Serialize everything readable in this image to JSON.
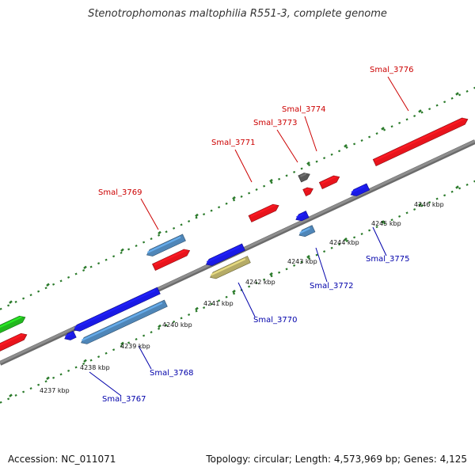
{
  "header": {
    "title": "Stenotrophomonas maltophilia R551-3, complete genome"
  },
  "footer": {
    "accession": "Accession: NC_011071",
    "summary": "Topology: circular; Length: 4,573,969 bp; Genes: 4,125"
  },
  "colors": {
    "forward_gene": "#e8141c",
    "reverse_gene": "#1a1ae6",
    "steel_gene": "#4f86b8",
    "olive_gene": "#b5ab66",
    "green_gene": "#22b81e",
    "gray_gene": "#5a5a5a",
    "forward_label": "#cc0000",
    "reverse_label": "#0000aa",
    "tick_color": "#2a7a2a",
    "backbone": "#8e8e8e"
  },
  "kbp_ticks": [
    {
      "label": "4237 kbp"
    },
    {
      "label": "4238 kbp"
    },
    {
      "label": "4239 kbp"
    },
    {
      "label": "4240 kbp"
    },
    {
      "label": "4241 kbp"
    },
    {
      "label": "4242 kbp"
    },
    {
      "label": "4243 kbp"
    },
    {
      "label": "4244 kbp"
    },
    {
      "label": "4245 kbp"
    },
    {
      "label": "4246 kbp"
    }
  ],
  "genes": [
    {
      "id": "Smal_3767",
      "strand": "reverse",
      "color": "steel"
    },
    {
      "id": "Smal_3768",
      "strand": "reverse",
      "color": "blue"
    },
    {
      "id": "Smal_3769",
      "strand": "forward",
      "color": "red"
    },
    {
      "id": "Smal_3770",
      "strand": "reverse",
      "color": "olive"
    },
    {
      "id": "Smal_3771",
      "strand": "forward",
      "color": "red"
    },
    {
      "id": "Smal_3772",
      "strand": "reverse",
      "color": "steel"
    },
    {
      "id": "Smal_3773",
      "strand": "forward",
      "color": "red"
    },
    {
      "id": "Smal_3774",
      "strand": "forward",
      "color": "gray"
    },
    {
      "id": "Smal_3775",
      "strand": "reverse",
      "color": "blue"
    },
    {
      "id": "Smal_3776",
      "strand": "forward",
      "color": "red"
    }
  ]
}
